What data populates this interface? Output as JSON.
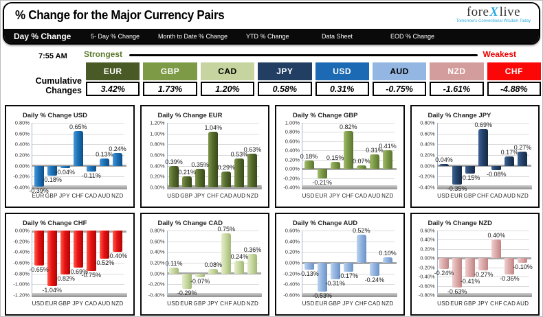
{
  "header": {
    "title": "% Change for the Major Currency Pairs",
    "logo": {
      "part1": "fore",
      "x": "X",
      "part2": "live",
      "tagline": "Tomorrow's Conventional Wisdom Today"
    }
  },
  "tabs": [
    {
      "label": "Day % Change",
      "active": true
    },
    {
      "label": "5- Day % Change",
      "active": false
    },
    {
      "label": "Month to Date % Change",
      "active": false
    },
    {
      "label": "YTD % Change",
      "active": false
    },
    {
      "label": "Data Sheet",
      "active": false
    },
    {
      "label": "EOD % Change",
      "active": false
    }
  ],
  "ranking": {
    "time": "7:55 AM",
    "strongest_label": "Strongest",
    "weakest_label": "Weakest",
    "strongest_color": "#5a7a2a",
    "weakest_color": "#ee0000",
    "cumulative_label_line1": "Cumulative",
    "cumulative_label_line2": "Changes",
    "currencies": [
      {
        "code": "EUR",
        "value": "3.42%",
        "bg": "#4a5a26",
        "fg": "#ffffff"
      },
      {
        "code": "GBP",
        "value": "1.73%",
        "bg": "#7d9a47",
        "fg": "#ffffff"
      },
      {
        "code": "CAD",
        "value": "1.20%",
        "bg": "#c6d5a0",
        "fg": "#000000"
      },
      {
        "code": "JPY",
        "value": "0.58%",
        "bg": "#223f63",
        "fg": "#ffffff"
      },
      {
        "code": "USD",
        "value": "0.31%",
        "bg": "#1b6ab3",
        "fg": "#ffffff"
      },
      {
        "code": "AUD",
        "value": "-0.75%",
        "bg": "#94b6e2",
        "fg": "#000000"
      },
      {
        "code": "NZD",
        "value": "-1.61%",
        "bg": "#d49d9d",
        "fg": "#ffffff"
      },
      {
        "code": "CHF",
        "value": "-4.88%",
        "bg": "#fb0707",
        "fg": "#ffffff"
      }
    ]
  },
  "chart_data": [
    {
      "type": "bar",
      "title": "Daily % Change USD",
      "categories": [
        "EUR",
        "GBP",
        "JPY",
        "CHF",
        "CAD",
        "AUD",
        "NZD"
      ],
      "values": [
        -0.39,
        -0.18,
        -0.04,
        0.65,
        -0.11,
        0.13,
        0.24
      ],
      "ylim": [
        -0.4,
        0.8
      ],
      "yticks": [
        "0.80%",
        "0.60%",
        "0.40%",
        "0.20%",
        "0.00%",
        "-0.20%",
        "-0.40%"
      ],
      "bar_color": "#1b72b8",
      "bar_light": "#4a96d4",
      "bar_dark": "#0f4e85"
    },
    {
      "type": "bar",
      "title": "Daily % Change EUR",
      "categories": [
        "USD",
        "GBP",
        "JPY",
        "CHF",
        "CAD",
        "AUD",
        "NZD"
      ],
      "values": [
        0.39,
        0.21,
        0.35,
        1.04,
        0.29,
        0.53,
        0.63
      ],
      "ylim": [
        0.0,
        1.2
      ],
      "yticks": [
        "1.20%",
        "1.00%",
        "0.80%",
        "0.60%",
        "0.40%",
        "0.20%",
        "0.00%"
      ],
      "bar_color": "#556b2a",
      "bar_light": "#7e944c",
      "bar_dark": "#39491c"
    },
    {
      "type": "bar",
      "title": "Daily % Change GBP",
      "categories": [
        "USD",
        "EUR",
        "JPY",
        "CHF",
        "CAD",
        "AUD",
        "NZD"
      ],
      "values": [
        0.18,
        -0.21,
        0.15,
        0.82,
        0.07,
        0.31,
        0.41
      ],
      "ylim": [
        -0.4,
        1.0
      ],
      "yticks": [
        "1.00%",
        "0.80%",
        "0.60%",
        "0.40%",
        "0.20%",
        "0.00%",
        "-0.20%",
        "-0.40%"
      ],
      "bar_color": "#7d9a47",
      "bar_light": "#a2bd6e",
      "bar_dark": "#5a7330"
    },
    {
      "type": "bar",
      "title": "Daily % Change JPY",
      "categories": [
        "USD",
        "EUR",
        "GBP",
        "CHF",
        "CAD",
        "AUD",
        "NZD"
      ],
      "values": [
        0.04,
        -0.35,
        -0.15,
        0.69,
        -0.08,
        0.17,
        0.27
      ],
      "ylim": [
        -0.4,
        0.8
      ],
      "yticks": [
        "0.80%",
        "0.60%",
        "0.40%",
        "0.20%",
        "0.00%",
        "-0.20%",
        "-0.40%"
      ],
      "bar_color": "#24436b",
      "bar_light": "#3f6394",
      "bar_dark": "#152944"
    },
    {
      "type": "bar",
      "title": "Daily % Change CHF",
      "categories": [
        "USD",
        "EUR",
        "GBP",
        "JPY",
        "CAD",
        "AUD",
        "NZD"
      ],
      "values": [
        -0.65,
        -1.04,
        -0.82,
        -0.69,
        -0.75,
        -0.52,
        -0.4
      ],
      "ylim": [
        -1.2,
        0.0
      ],
      "yticks": [
        "0.00%",
        "-0.20%",
        "-0.40%",
        "-0.60%",
        "-0.80%",
        "-1.00%",
        "-1.20%"
      ],
      "bar_color": "#e81212",
      "bar_light": "#ff5c4c",
      "bar_dark": "#ae0606"
    },
    {
      "type": "bar",
      "title": "Daily % Change CAD",
      "categories": [
        "USD",
        "EUR",
        "GBP",
        "JPY",
        "CHF",
        "AUD",
        "NZD"
      ],
      "values": [
        0.11,
        -0.29,
        -0.07,
        0.08,
        0.75,
        0.24,
        0.36
      ],
      "ylim": [
        -0.4,
        0.8
      ],
      "yticks": [
        "0.80%",
        "0.60%",
        "0.40%",
        "0.20%",
        "0.00%",
        "-0.20%",
        "-0.40%"
      ],
      "bar_color": "#c9d9a2",
      "bar_light": "#e3edc9",
      "bar_dark": "#a3b877"
    },
    {
      "type": "bar",
      "title": "Daily % Change AUD",
      "categories": [
        "USD",
        "EUR",
        "GBP",
        "JPY",
        "CHF",
        "CAD",
        "NZD"
      ],
      "values": [
        -0.13,
        -0.53,
        -0.31,
        -0.17,
        0.52,
        -0.24,
        0.1
      ],
      "ylim": [
        -0.6,
        0.6
      ],
      "yticks": [
        "0.60%",
        "0.40%",
        "0.20%",
        "0.00%",
        "-0.20%",
        "-0.40%",
        "-0.60%"
      ],
      "bar_color": "#92b4e0",
      "bar_light": "#bcd3ef",
      "bar_dark": "#6b91c4"
    },
    {
      "type": "bar",
      "title": "Daily % Change NZD",
      "categories": [
        "USD",
        "EUR",
        "GBP",
        "JPY",
        "CHF",
        "CAD",
        "AUD"
      ],
      "values": [
        -0.24,
        -0.63,
        -0.41,
        -0.27,
        0.4,
        -0.36,
        -0.1
      ],
      "ylim": [
        -0.8,
        0.6
      ],
      "yticks": [
        "0.60%",
        "0.40%",
        "0.20%",
        "0.00%",
        "-0.20%",
        "-0.40%",
        "-0.60%",
        "-0.80%"
      ],
      "bar_color": "#dcabab",
      "bar_light": "#f0cdcd",
      "bar_dark": "#c08484"
    }
  ]
}
